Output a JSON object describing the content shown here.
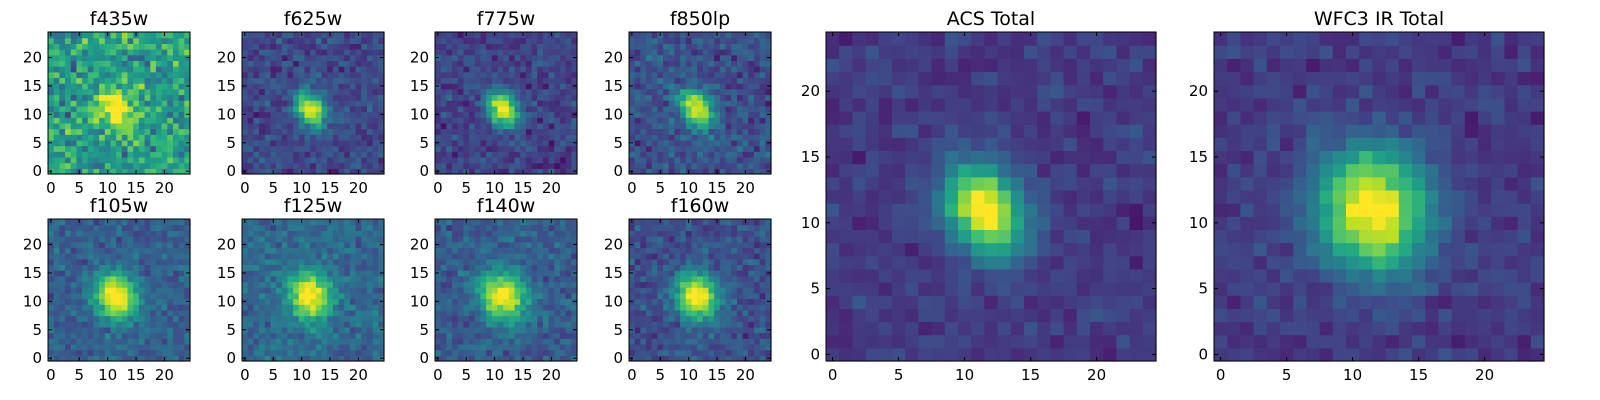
{
  "chart_data": {
    "type": "heatmap",
    "colormap": "viridis",
    "grid": false,
    "panels": [
      {
        "title": "f435w",
        "size": 25,
        "peak": [
          11.5,
          11
        ],
        "sigma": [
          1.7,
          2.8
        ],
        "angle": -35,
        "amp": 0.55,
        "bg": 0.55,
        "noise": 0.25,
        "xlim": [
          0,
          24
        ],
        "ylim": [
          0,
          24
        ],
        "xticks": [
          0,
          5,
          10,
          15,
          20
        ],
        "yticks": [
          0,
          5,
          10,
          15,
          20
        ],
        "seed": 1
      },
      {
        "title": "f625w",
        "size": 25,
        "peak": [
          11.5,
          11
        ],
        "sigma": [
          1.6,
          2.3
        ],
        "angle": -35,
        "amp": 0.85,
        "bg": 0.22,
        "noise": 0.12,
        "xlim": [
          0,
          24
        ],
        "ylim": [
          0,
          24
        ],
        "xticks": [
          0,
          5,
          10,
          15,
          20
        ],
        "yticks": [
          0,
          5,
          10,
          15,
          20
        ],
        "seed": 2
      },
      {
        "title": "f775w",
        "size": 25,
        "peak": [
          11.5,
          11
        ],
        "sigma": [
          1.7,
          2.3
        ],
        "angle": -35,
        "amp": 0.85,
        "bg": 0.2,
        "noise": 0.12,
        "xlim": [
          0,
          24
        ],
        "ylim": [
          0,
          24
        ],
        "xticks": [
          0,
          5,
          10,
          15,
          20
        ],
        "yticks": [
          0,
          5,
          10,
          15,
          20
        ],
        "seed": 3
      },
      {
        "title": "f850lp",
        "size": 25,
        "peak": [
          11.5,
          11
        ],
        "sigma": [
          1.8,
          2.4
        ],
        "angle": -35,
        "amp": 0.8,
        "bg": 0.25,
        "noise": 0.14,
        "xlim": [
          0,
          24
        ],
        "ylim": [
          0,
          24
        ],
        "xticks": [
          0,
          5,
          10,
          15,
          20
        ],
        "yticks": [
          0,
          5,
          10,
          15,
          20
        ],
        "seed": 4
      },
      {
        "title": "f105w",
        "size": 25,
        "peak": [
          11.5,
          11
        ],
        "sigma": [
          2.6,
          3.0
        ],
        "angle": -20,
        "amp": 0.75,
        "bg": 0.3,
        "noise": 0.12,
        "xlim": [
          0,
          24
        ],
        "ylim": [
          0,
          24
        ],
        "xticks": [
          0,
          5,
          10,
          15,
          20
        ],
        "yticks": [
          0,
          5,
          10,
          15,
          20
        ],
        "seed": 5
      },
      {
        "title": "f125w",
        "size": 25,
        "peak": [
          11.5,
          11
        ],
        "sigma": [
          2.6,
          3.0
        ],
        "angle": -20,
        "amp": 0.72,
        "bg": 0.34,
        "noise": 0.12,
        "xlim": [
          0,
          24
        ],
        "ylim": [
          0,
          24
        ],
        "xticks": [
          0,
          5,
          10,
          15,
          20
        ],
        "yticks": [
          0,
          5,
          10,
          15,
          20
        ],
        "seed": 6
      },
      {
        "title": "f140w",
        "size": 25,
        "peak": [
          11.5,
          11
        ],
        "sigma": [
          2.7,
          3.1
        ],
        "angle": -20,
        "amp": 0.74,
        "bg": 0.3,
        "noise": 0.12,
        "xlim": [
          0,
          24
        ],
        "ylim": [
          0,
          24
        ],
        "xticks": [
          0,
          5,
          10,
          15,
          20
        ],
        "yticks": [
          0,
          5,
          10,
          15,
          20
        ],
        "seed": 7
      },
      {
        "title": "f160w",
        "size": 25,
        "peak": [
          11.5,
          11
        ],
        "sigma": [
          2.6,
          3.0
        ],
        "angle": -20,
        "amp": 0.78,
        "bg": 0.24,
        "noise": 0.12,
        "xlim": [
          0,
          24
        ],
        "ylim": [
          0,
          24
        ],
        "xticks": [
          0,
          5,
          10,
          15,
          20
        ],
        "yticks": [
          0,
          5,
          10,
          15,
          20
        ],
        "seed": 8
      },
      {
        "title": "ACS Total",
        "size": 25,
        "peak": [
          11.5,
          11
        ],
        "sigma": [
          1.9,
          2.6
        ],
        "angle": -30,
        "amp": 0.88,
        "bg": 0.17,
        "noise": 0.08,
        "xlim": [
          0,
          24
        ],
        "ylim": [
          0,
          24
        ],
        "xticks": [
          0,
          5,
          10,
          15,
          20
        ],
        "yticks": [
          0,
          5,
          10,
          15,
          20
        ],
        "seed": 9
      },
      {
        "title": "WFC3 IR Total",
        "size": 25,
        "peak": [
          11.5,
          11
        ],
        "sigma": [
          2.9,
          3.3
        ],
        "angle": -15,
        "amp": 0.88,
        "bg": 0.17,
        "noise": 0.08,
        "xlim": [
          0,
          24
        ],
        "ylim": [
          0,
          24
        ],
        "xticks": [
          0,
          5,
          10,
          15,
          20
        ],
        "yticks": [
          0,
          5,
          10,
          15,
          20
        ],
        "seed": 10
      }
    ]
  }
}
